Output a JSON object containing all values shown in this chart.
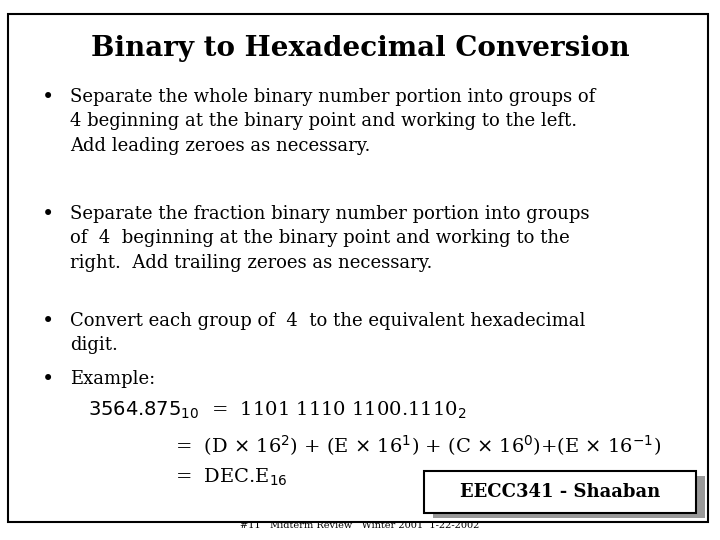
{
  "title": "Binary to Hexadecimal Conversion",
  "background_color": "#ffffff",
  "border_color": "#000000",
  "title_fontsize": 20,
  "body_fontsize": 13,
  "bullet1": "Separate the whole binary number portion into groups of\n4 beginning at the binary point and working to the left.\nAdd leading zeroes as necessary.",
  "bullet2": "Separate the fraction binary number portion into groups\nof  4  beginning at the binary point and working to the\nright.  Add trailing zeroes as necessary.",
  "bullet3": "Convert each group of  4  to the equivalent hexadecimal\ndigit.",
  "bullet4": "Example:",
  "footer_label": "EECC341 - Shaaban",
  "footer_sub": "#11   Midterm Review   Winter 2001  1-22-2002",
  "shadow_color": "#999999",
  "footer_border": "#000000",
  "bullet_char": "•"
}
